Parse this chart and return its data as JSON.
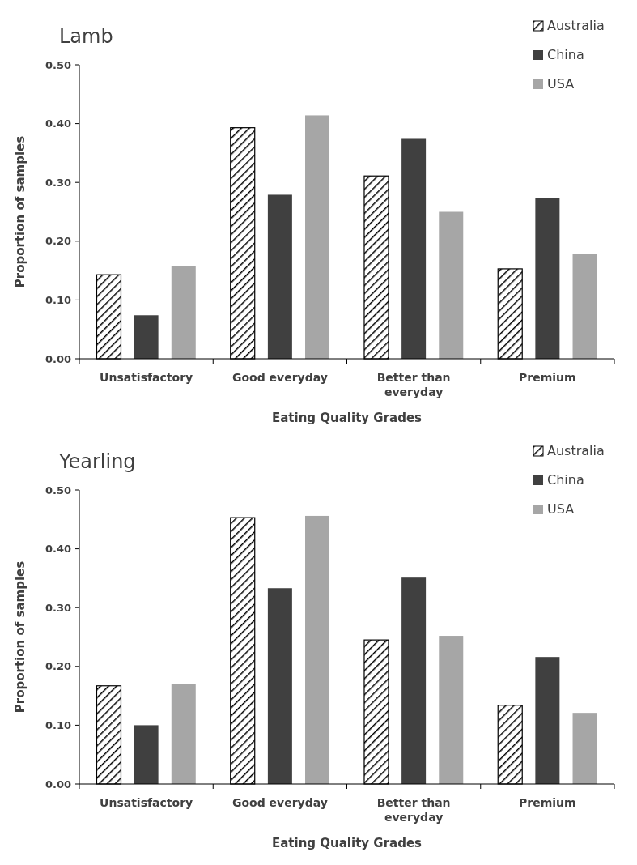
{
  "chart_data": [
    {
      "type": "bar",
      "title": "Lamb",
      "xlabel": "Eating Quality Grades",
      "ylabel": "Proportion of samples",
      "categories": [
        "Unsatisfactory",
        "Good everyday",
        "Better than everyday",
        "Premium"
      ],
      "series": [
        {
          "name": "Australia",
          "color": "#000000",
          "values": [
            0.143,
            0.393,
            0.311,
            0.153
          ]
        },
        {
          "name": "China",
          "color": "#404040",
          "values": [
            0.074,
            0.279,
            0.374,
            0.274
          ]
        },
        {
          "name": "USA",
          "color": "#a6a6a6",
          "values": [
            0.158,
            0.414,
            0.25,
            0.179
          ]
        }
      ],
      "ylim": [
        0,
        0.5
      ],
      "yticks": [
        {
          "value": 0,
          "label": "0.00"
        },
        {
          "value": 0.1,
          "label": "0.10"
        },
        {
          "value": 0.2,
          "label": "0.20"
        },
        {
          "value": 0.3,
          "label": "0.30"
        },
        {
          "value": 0.4,
          "label": "0.40"
        },
        {
          "value": 0.5,
          "label": "0.50"
        }
      ],
      "legend": "top right"
    },
    {
      "type": "bar",
      "title": "Yearling",
      "xlabel": "Eating Quality Grades",
      "ylabel": "Proportion of samples",
      "categories": [
        "Unsatisfactory",
        "Good everyday",
        "Better than everyday",
        "Premium"
      ],
      "series": [
        {
          "name": "Australia",
          "color": "#000000",
          "values": [
            0.167,
            0.453,
            0.245,
            0.134
          ]
        },
        {
          "name": "China",
          "color": "#404040",
          "values": [
            0.1,
            0.333,
            0.351,
            0.216
          ]
        },
        {
          "name": "USA",
          "color": "#a6a6a6",
          "values": [
            0.17,
            0.456,
            0.252,
            0.121
          ]
        }
      ],
      "ylim": [
        0,
        0.5
      ],
      "yticks": [
        {
          "value": 0,
          "label": "0.00"
        },
        {
          "value": 0.1,
          "label": "0.10"
        },
        {
          "value": 0.2,
          "label": "0.20"
        },
        {
          "value": 0.3,
          "label": "0.30"
        },
        {
          "value": 0.4,
          "label": "0.40"
        },
        {
          "value": 0.5,
          "label": "0.50"
        }
      ],
      "legend": "top right"
    }
  ]
}
